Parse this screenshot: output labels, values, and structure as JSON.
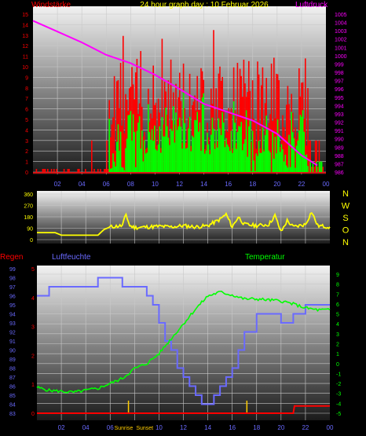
{
  "chart_data": [
    {
      "type": "bar",
      "title": "24 hour graph day : 10 Februar 2026",
      "legend": [
        {
          "label": "Windstärke",
          "color": "#ff0000",
          "position": "top-left"
        },
        {
          "label": "Luftdruck",
          "color": "#ff00ff",
          "position": "top-right"
        }
      ],
      "x_ticks": [
        "02",
        "04",
        "06",
        "08",
        "10",
        "12",
        "14",
        "16",
        "18",
        "20",
        "22",
        "00"
      ],
      "y_left_ticks": [
        "0",
        "1",
        "2",
        "3",
        "4",
        "5",
        "6",
        "7",
        "8",
        "9",
        "10",
        "11",
        "12",
        "13",
        "14",
        "15"
      ],
      "y_left_range": [
        0,
        15
      ],
      "y_right_ticks": [
        "986",
        "987",
        "988",
        "989",
        "990",
        "991",
        "992",
        "993",
        "994",
        "995",
        "996",
        "997",
        "998",
        "999",
        "1000",
        "1001",
        "1002",
        "1003",
        "1004",
        "1005"
      ],
      "y_right_range": [
        986,
        1005
      ],
      "series": [
        {
          "name": "Windstärke",
          "color": "#ff0000",
          "kind": "gust_bars"
        },
        {
          "name": "",
          "color": "#00ff00",
          "kind": "mean_bars"
        },
        {
          "name": "Luftdruck",
          "color": "#ff00ff",
          "kind": "line",
          "x": [
            0,
            2,
            4,
            6,
            8,
            10,
            12,
            14,
            16,
            18,
            20,
            22,
            23.3
          ],
          "values": [
            1004.2,
            1002.9,
            1001.6,
            1000.1,
            999.1,
            997.7,
            996.0,
            994.2,
            993.2,
            992.2,
            990.6,
            988.0,
            986.8
          ]
        }
      ],
      "grid": true
    },
    {
      "type": "line",
      "y_left_ticks": [
        "0",
        "90",
        "180",
        "270",
        "360"
      ],
      "y_left_range": [
        0,
        360
      ],
      "y_right_ticks": [
        "N",
        "W",
        "S",
        "O",
        "N"
      ],
      "x_ticks": [
        "02",
        "04",
        "06",
        "08",
        "10",
        "12",
        "14",
        "16",
        "18",
        "20",
        "22",
        "00"
      ],
      "series": [
        {
          "name": "",
          "color": "#ffff00",
          "x": [
            0,
            1.5,
            2,
            5,
            5.5,
            6,
            7,
            7.3,
            7.6,
            8,
            9,
            10,
            11,
            12,
            13,
            14,
            15,
            15.5,
            16,
            16.5,
            17,
            18,
            19,
            19.5,
            20,
            20.5,
            21,
            22,
            22.5,
            23,
            24
          ],
          "values": [
            55,
            55,
            35,
            35,
            80,
            100,
            110,
            200,
            110,
            95,
            100,
            105,
            100,
            110,
            100,
            110,
            160,
            200,
            100,
            180,
            120,
            110,
            120,
            190,
            60,
            150,
            100,
            120,
            220,
            110,
            100
          ]
        }
      ],
      "grid": true
    },
    {
      "type": "line",
      "legend": [
        {
          "label": "Regen",
          "color": "#ff0000",
          "position": "top-left"
        },
        {
          "label": "Luftfeuchte",
          "color": "#6a6aff",
          "position": "top-left"
        },
        {
          "label": "Temperatur",
          "color": "#00ff00",
          "position": "top-right"
        }
      ],
      "x_ticks": [
        "02",
        "04",
        "06",
        "08",
        "10",
        "12",
        "14",
        "16",
        "18",
        "20",
        "22",
        "00"
      ],
      "annotations": [
        "Sunrise",
        "Sunset"
      ],
      "y_left_rain_ticks": [
        "0",
        "1",
        "2",
        "3",
        "4",
        "5"
      ],
      "y_left_humidity_ticks": [
        "83",
        "84",
        "85",
        "86",
        "87",
        "88",
        "89",
        "90",
        "91",
        "92",
        "93",
        "94",
        "95",
        "96",
        "97",
        "98",
        "99"
      ],
      "y_humidity_range": [
        83,
        99
      ],
      "y_right_ticks": [
        "-5",
        "-4",
        "-3",
        "-2",
        "-1",
        "0",
        "1",
        "2",
        "3",
        "4",
        "5",
        "6",
        "7",
        "8",
        "9"
      ],
      "y_temperature_range": [
        -5,
        9
      ],
      "series": [
        {
          "name": "Luftfeuchte",
          "color": "#6a6aff",
          "x": [
            0,
            1,
            2,
            4,
            5,
            6,
            7,
            8,
            9,
            9.5,
            10,
            10.5,
            11,
            11.5,
            12,
            12.5,
            13,
            13.5,
            14,
            14.5,
            15,
            15.5,
            16,
            16.5,
            17,
            18,
            19,
            20,
            21,
            22,
            23,
            24
          ],
          "values": [
            96,
            97,
            97,
            97,
            98,
            98,
            97,
            97,
            96,
            95,
            93,
            91,
            90,
            88,
            87,
            86,
            85,
            84,
            84,
            85,
            86,
            87,
            88,
            90,
            92,
            94,
            94,
            93,
            94,
            95,
            95,
            95
          ]
        },
        {
          "name": "Temperatur",
          "color": "#00ff00",
          "x": [
            0,
            1,
            2,
            3,
            4,
            5,
            6,
            7,
            8,
            9,
            10,
            11,
            12,
            13,
            14,
            15,
            16,
            17,
            18,
            19,
            20,
            21,
            22,
            23,
            24
          ],
          "values": [
            -2.4,
            -2.7,
            -2.8,
            -2.9,
            -2.7,
            -2.5,
            -2.0,
            -1.5,
            -0.5,
            0.0,
            1.0,
            2.5,
            4.0,
            5.5,
            6.8,
            7.2,
            6.9,
            6.5,
            6.5,
            6.4,
            6.3,
            6.0,
            5.6,
            5.4,
            5.4
          ]
        },
        {
          "name": "Regen",
          "color": "#ff0000",
          "x": [
            0,
            21,
            21.1,
            24
          ],
          "values": [
            0,
            0,
            0.25,
            0.25
          ]
        }
      ],
      "grid": true
    }
  ]
}
